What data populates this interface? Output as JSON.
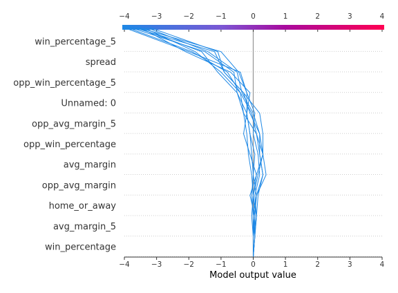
{
  "chart_data": {
    "type": "line",
    "title": "",
    "xlabel": "Model output value",
    "ylabel": "",
    "xlim": [
      -4,
      4
    ],
    "xticks": [
      -4,
      -3,
      -2,
      -1,
      0,
      1,
      2,
      3,
      4
    ],
    "xtick_labels": [
      "−4",
      "−3",
      "−2",
      "−1",
      "0",
      "1",
      "2",
      "3",
      "4"
    ],
    "base_value": 0,
    "grid": "dotted horizontal rows",
    "colorbar": {
      "position": "top",
      "range": [
        -4,
        4
      ],
      "colors": [
        "#1e88e5",
        "#7b57d4",
        "#a80a9e",
        "#ff0052"
      ]
    },
    "line_color": "#1e88e5",
    "features": [
      "win_percentage_5",
      "spread",
      "opp_win_percentage_5",
      "Unnamed: 0",
      "opp_avg_margin_5",
      "opp_win_percentage",
      "avg_margin",
      "opp_avg_margin",
      "home_or_away",
      "avg_margin_5",
      "win_percentage"
    ],
    "feature_order_note": "top to bottom",
    "series": [
      {
        "values": [
          -4.0,
          -2.0,
          -0.4,
          -0.2,
          -0.2,
          -0.1,
          -0.05,
          0.0,
          -0.05,
          0.0,
          0.0,
          0.0
        ]
      },
      {
        "values": [
          -3.9,
          -1.9,
          -0.8,
          -0.4,
          -0.3,
          -0.2,
          -0.15,
          -0.05,
          0.0,
          0.05,
          0.05,
          0.0
        ]
      },
      {
        "values": [
          -3.8,
          -1.5,
          -0.6,
          -0.5,
          -0.3,
          0.1,
          0.2,
          0.3,
          0.1,
          0.0,
          0.0,
          0.0
        ]
      },
      {
        "values": [
          -3.7,
          -1.2,
          -0.9,
          -0.3,
          -0.1,
          0.2,
          0.3,
          0.1,
          -0.1,
          0.05,
          0.0,
          0.0
        ]
      },
      {
        "values": [
          -3.6,
          -1.6,
          -1.1,
          -0.5,
          -0.2,
          -0.3,
          -0.1,
          0.1,
          0.0,
          0.1,
          0.05,
          0.0
        ]
      },
      {
        "values": [
          -3.55,
          -1.0,
          -0.45,
          -0.2,
          0.05,
          0.0,
          0.15,
          0.2,
          0.05,
          0.1,
          0.0,
          0.0
        ]
      },
      {
        "values": [
          -3.5,
          -2.1,
          -0.7,
          -0.1,
          -0.2,
          -0.1,
          0.05,
          0.0,
          0.1,
          0.0,
          0.05,
          0.0
        ]
      },
      {
        "values": [
          -3.4,
          -1.8,
          -1.0,
          -0.4,
          -0.05,
          0.1,
          0.3,
          0.15,
          0.0,
          -0.05,
          0.0,
          0.0
        ]
      },
      {
        "values": [
          -3.3,
          -1.4,
          -0.5,
          -0.35,
          0.0,
          0.2,
          0.2,
          0.3,
          0.15,
          0.1,
          0.05,
          0.0
        ]
      },
      {
        "values": [
          -3.2,
          -1.1,
          -0.9,
          -0.3,
          0.2,
          0.3,
          0.3,
          0.4,
          0.1,
          0.05,
          0.0,
          0.0
        ]
      }
    ]
  }
}
